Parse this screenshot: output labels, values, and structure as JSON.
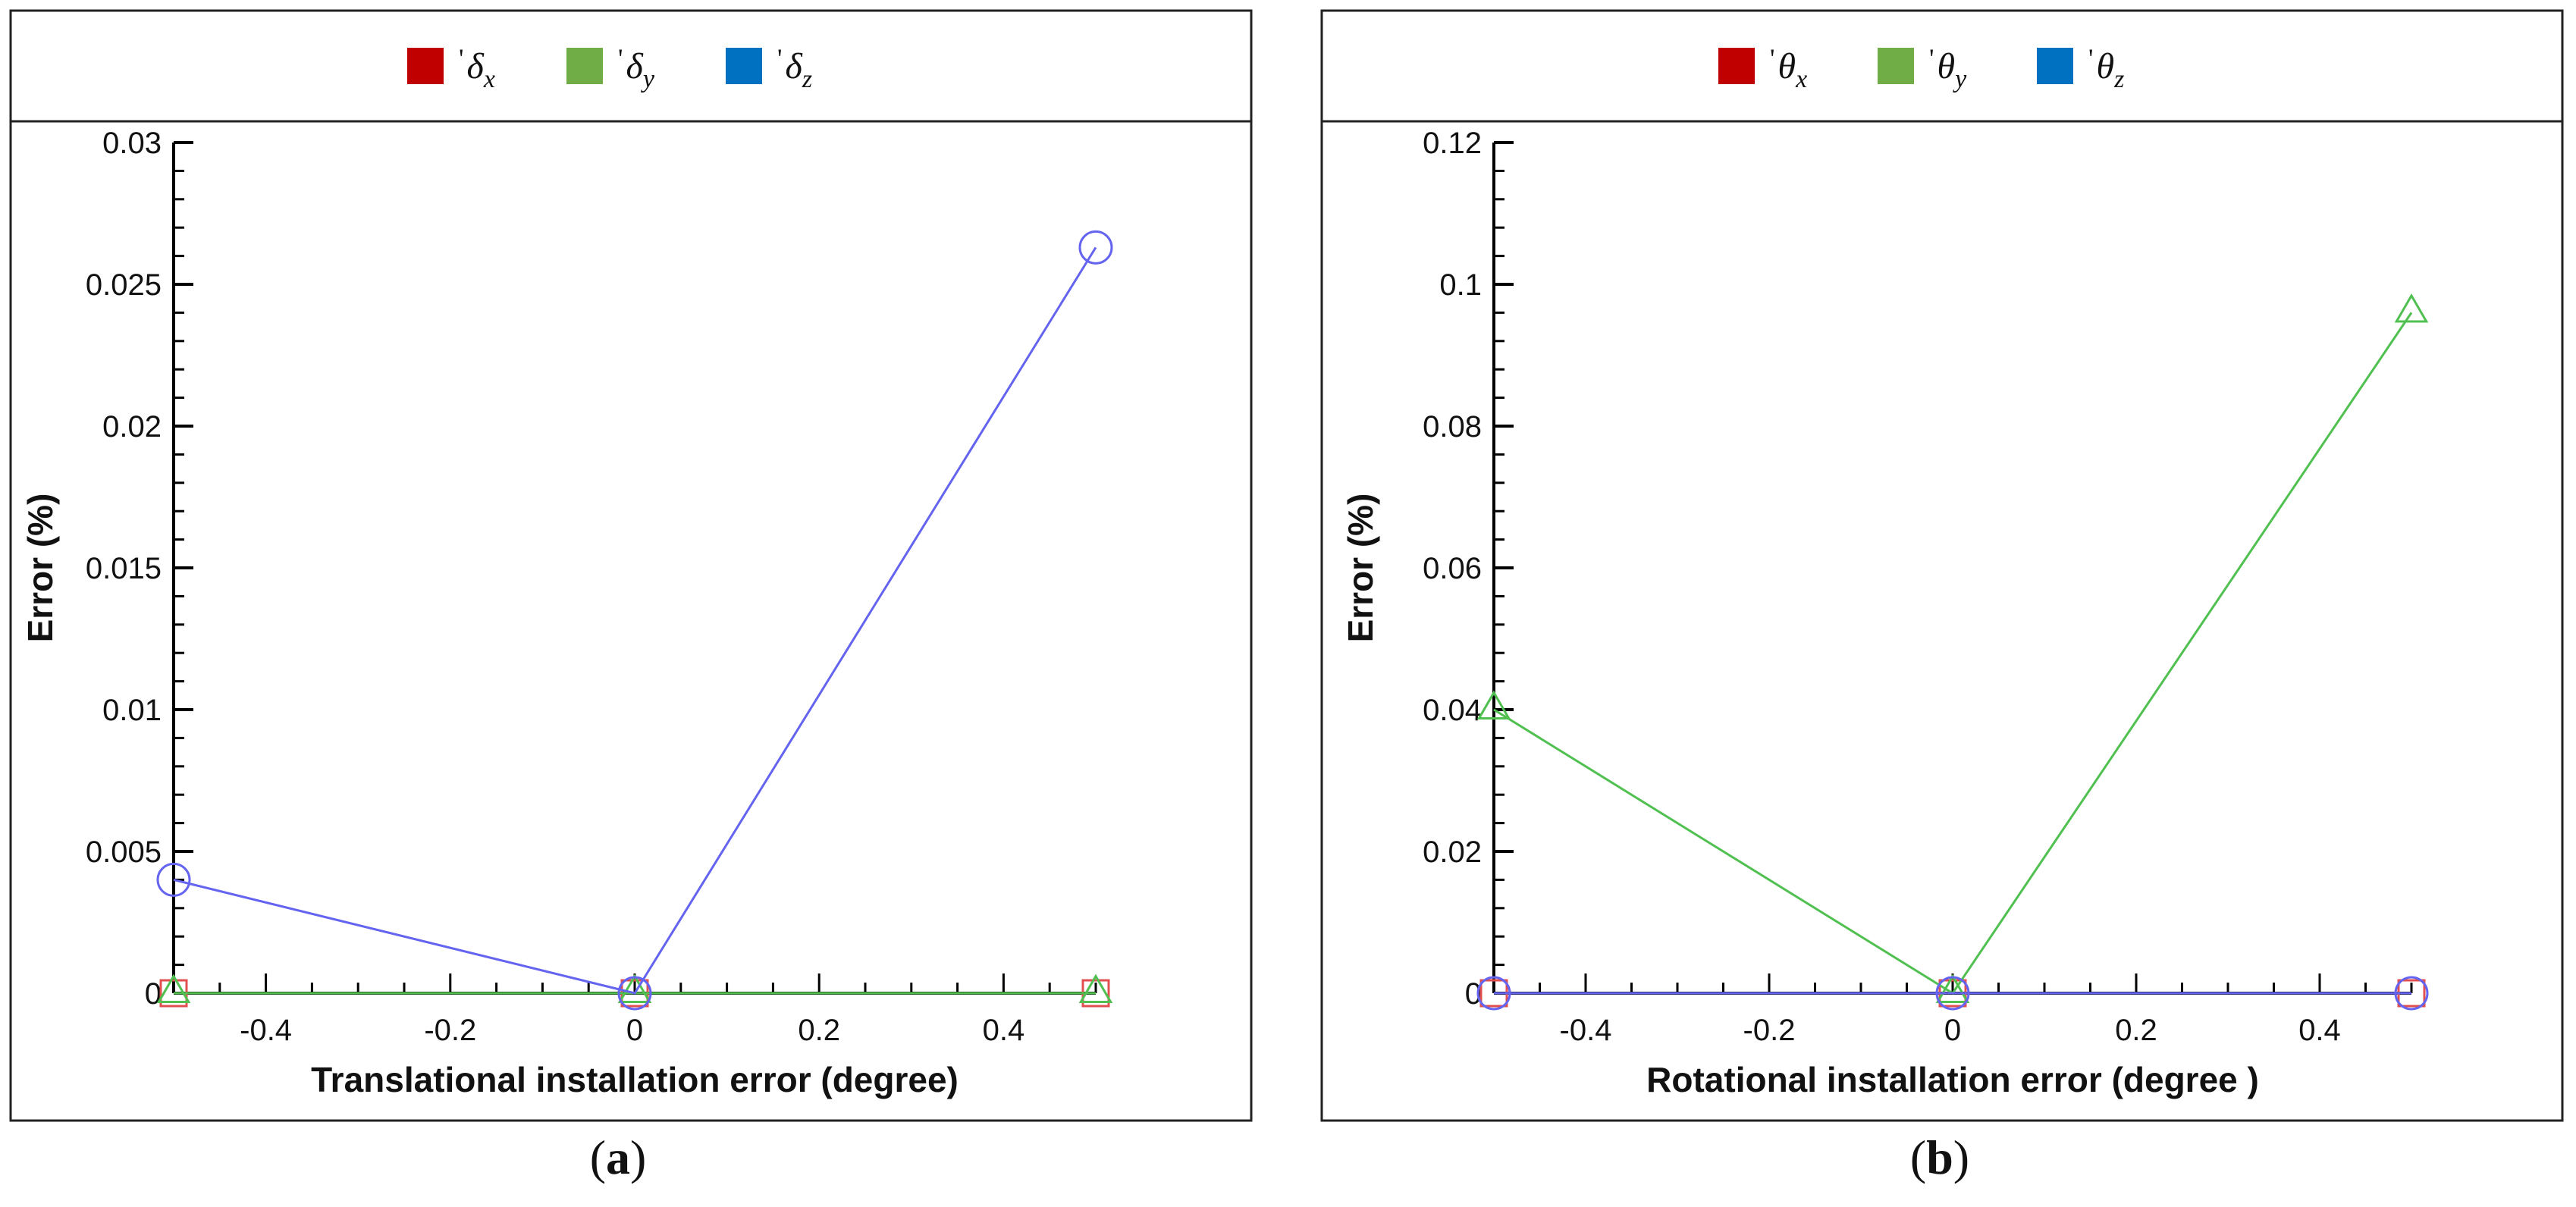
{
  "chart_data": [
    {
      "type": "line",
      "panel_label": "(a)",
      "title": "",
      "xlabel": "Translational installation error (degree)",
      "ylabel": "Error (%)",
      "xlim": [
        -0.5,
        0.5
      ],
      "ylim": [
        0,
        0.03
      ],
      "x_ticks": [
        -0.4,
        -0.2,
        0,
        0.2,
        0.4
      ],
      "x_tick_labels": [
        "-0.4",
        "-0.2",
        "0",
        "0.2",
        "0.4"
      ],
      "y_ticks": [
        0,
        0.005,
        0.01,
        0.015,
        0.02,
        0.025,
        0.03
      ],
      "y_tick_labels": [
        "0",
        "0.005",
        "0.01",
        "0.015",
        "0.02",
        "0.025",
        "0.03"
      ],
      "legend": {
        "placement": "top",
        "entries": [
          {
            "prefix": "'",
            "symbol": "δ",
            "sub": "x",
            "color": "#c00000"
          },
          {
            "prefix": "'",
            "symbol": "δ",
            "sub": "y",
            "color": "#70ad47"
          },
          {
            "prefix": "'",
            "symbol": "δ",
            "sub": "z",
            "color": "#0070c0"
          }
        ]
      },
      "series": [
        {
          "key": "dx",
          "color": "#e05050",
          "marker": "square",
          "x": [
            -0.5,
            0,
            0.5
          ],
          "y": [
            0,
            0,
            0
          ]
        },
        {
          "key": "dy",
          "color": "#50c050",
          "marker": "triangle",
          "x": [
            -0.5,
            0,
            0.5
          ],
          "y": [
            0,
            0,
            0
          ]
        },
        {
          "key": "dz",
          "color": "#6464f0",
          "marker": "circle",
          "x": [
            -0.5,
            0,
            0.5
          ],
          "y": [
            0.004,
            0,
            0.0263
          ]
        }
      ]
    },
    {
      "type": "line",
      "panel_label": "(b)",
      "title": "",
      "xlabel": "Rotational installation error (degree )",
      "ylabel": "Error (%)",
      "xlim": [
        -0.5,
        0.5
      ],
      "ylim": [
        0,
        0.12
      ],
      "x_ticks": [
        -0.4,
        -0.2,
        0,
        0.2,
        0.4
      ],
      "x_tick_labels": [
        "-0.4",
        "-0.2",
        "0",
        "0.2",
        "0.4"
      ],
      "y_ticks": [
        0,
        0.02,
        0.04,
        0.06,
        0.08,
        0.1,
        0.12
      ],
      "y_tick_labels": [
        "0",
        "0.02",
        "0.04",
        "0.06",
        "0.08",
        "0.1",
        "0.12"
      ],
      "legend": {
        "placement": "top",
        "entries": [
          {
            "prefix": "'",
            "symbol": "θ",
            "sub": "x",
            "color": "#c00000"
          },
          {
            "prefix": "'",
            "symbol": "θ",
            "sub": "y",
            "color": "#70ad47"
          },
          {
            "prefix": "'",
            "symbol": "θ",
            "sub": "z",
            "color": "#0070c0"
          }
        ]
      },
      "series": [
        {
          "key": "tx",
          "color": "#e05050",
          "marker": "square",
          "x": [
            -0.5,
            0,
            0.5
          ],
          "y": [
            0,
            0,
            0
          ]
        },
        {
          "key": "ty",
          "color": "#50c050",
          "marker": "triangle",
          "x": [
            -0.5,
            0,
            0.5
          ],
          "y": [
            0.04,
            0,
            0.096
          ]
        },
        {
          "key": "tz",
          "color": "#6464f0",
          "marker": "circle",
          "x": [
            -0.5,
            0,
            0.5
          ],
          "y": [
            0,
            0,
            0
          ]
        }
      ]
    }
  ]
}
